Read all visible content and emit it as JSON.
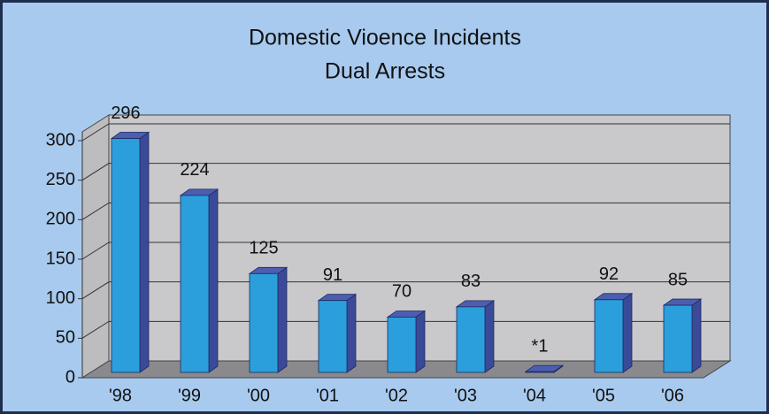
{
  "chart_data": {
    "type": "bar3d",
    "title": "Domestic Vioence Incidents",
    "subtitle": "Dual Arrests",
    "categories": [
      "'98",
      "'99",
      "'00",
      "'01",
      "'02",
      "'03",
      "'04",
      "'05",
      "'06"
    ],
    "values": [
      296,
      224,
      125,
      91,
      70,
      83,
      1,
      92,
      85
    ],
    "value_labels": [
      "296",
      "224",
      "125",
      "91",
      "70",
      "83",
      "*1",
      "92",
      "85"
    ],
    "color": "#2a9fdc",
    "ylim": [
      0,
      300
    ],
    "yticks": [
      0,
      50,
      100,
      150,
      200,
      250,
      300
    ],
    "grid": true
  }
}
